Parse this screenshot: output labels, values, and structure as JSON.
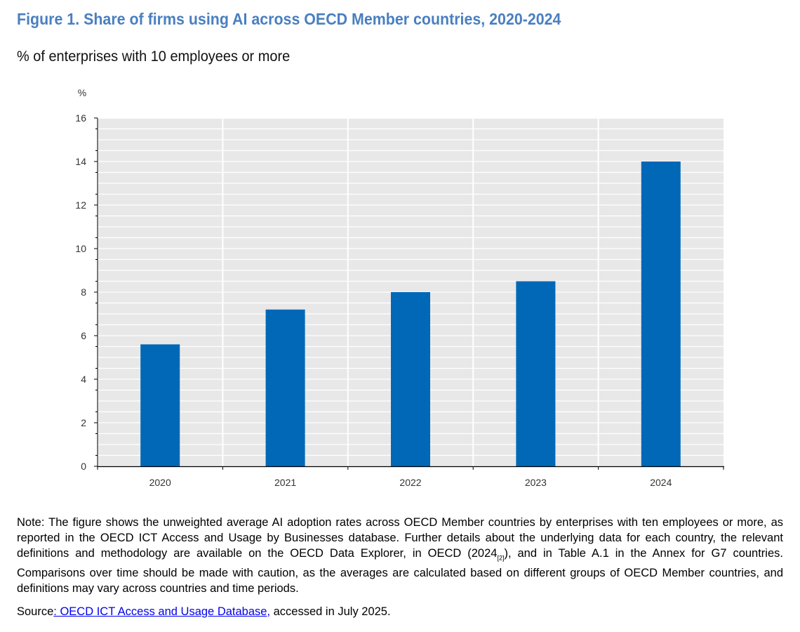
{
  "figure": {
    "title": "Figure 1. Share of firms using AI across OECD Member countries, 2020-2024",
    "subtitle": "% of enterprises with 10 employees or more"
  },
  "chart_data": {
    "type": "bar",
    "title": "Figure 1. Share of firms using AI across OECD Member countries, 2020-2024",
    "subtitle": "% of enterprises with 10 employees or more",
    "xlabel": "",
    "ylabel": "%",
    "categories": [
      "2020",
      "2021",
      "2022",
      "2023",
      "2024"
    ],
    "values": [
      5.6,
      7.2,
      8.0,
      8.5,
      14.0
    ],
    "ylim": [
      0,
      16
    ],
    "yticks": [
      0,
      2,
      4,
      6,
      8,
      10,
      12,
      14,
      16
    ],
    "ytick_labels": [
      "0",
      "2",
      "4",
      "6",
      "8",
      "10",
      "12",
      "14",
      "16"
    ],
    "grid": true,
    "legend": "none",
    "colors": {
      "bar": "#0068b7",
      "plot_background": "#e8e8e8",
      "gridline": "#ffffff",
      "title": "#4a7fbf"
    }
  },
  "note": {
    "text_before_ref": "Note: The figure shows the unweighted average AI adoption rates across OECD Member countries by enterprises with ten employees or more, as reported in the OECD ICT Access and Usage by Businesses database. Further details about the underlying data for each country, the relevant definitions and methodology are available on the OECD Data Explorer, in OECD (2024",
    "ref": "[2]",
    "text_after_ref": "), and in Table A.1 in the Annex for G7 countries. Comparisons over time should be made with caution, as the averages are calculated based on different groups of OECD Member countries, and definitions may vary across countries and time periods."
  },
  "source": {
    "label": "Source",
    "link_text": ": OECD ICT Access and Usage Database,",
    "suffix": " accessed in July 2025."
  }
}
